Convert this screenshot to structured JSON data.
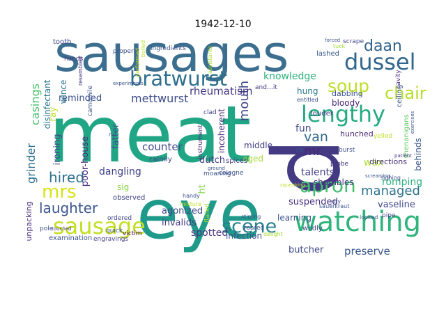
{
  "chart_data": {
    "type": "wordcloud",
    "title": "1942-12-10",
    "words": [
      {
        "text": "sausages",
        "color": "#3b6e8f"
      },
      {
        "text": "meat",
        "color": "#21a685"
      },
      {
        "text": "eye",
        "color": "#1f9a8a"
      },
      {
        "text": "d",
        "color": "#443a83"
      },
      {
        "text": "dussel",
        "color": "#31668e"
      },
      {
        "text": "bratwurst",
        "color": "#2e6f8e"
      },
      {
        "text": "lengthy",
        "color": "#25ab82"
      },
      {
        "text": "watching",
        "color": "#2fb47c"
      },
      {
        "text": "sausage",
        "color": "#c2df23"
      },
      {
        "text": "soup",
        "color": "#bddf26"
      },
      {
        "text": "mrs",
        "color": "#d8e219"
      },
      {
        "text": "apron",
        "color": "#44bf70"
      },
      {
        "text": "scene",
        "color": "#26828e"
      },
      {
        "text": "laughter",
        "color": "#3a548c"
      },
      {
        "text": "chair",
        "color": "#b5de2b"
      },
      {
        "text": "hired",
        "color": "#2d708e"
      },
      {
        "text": "managed",
        "color": "#2c728e"
      },
      {
        "text": "daan",
        "color": "#33638d"
      },
      {
        "text": "mouth",
        "color": "#3f4889"
      },
      {
        "text": "van",
        "color": "#31688e"
      },
      {
        "text": "mr.",
        "color": "#482878"
      },
      {
        "text": "knowledge",
        "color": "#2db27d"
      },
      {
        "text": "counter",
        "color": "#3e4c8a"
      },
      {
        "text": "mettwurst",
        "color": "#3d4d8a"
      },
      {
        "text": "casings",
        "color": "#4ac16d"
      },
      {
        "text": "fun",
        "color": "#404688"
      },
      {
        "text": "hung",
        "color": "#2a778e"
      },
      {
        "text": "wax",
        "color": "#b0dd2f"
      },
      {
        "text": "reminded",
        "color": "#3b528b"
      },
      {
        "text": "grinder",
        "color": "#2e6e8e"
      },
      {
        "text": "ironing",
        "color": "#3e4a89"
      },
      {
        "text": "rheumatism",
        "color": "#453781"
      },
      {
        "text": "talents",
        "color": "#424086"
      },
      {
        "text": "preserve",
        "color": "#38588c"
      },
      {
        "text": "romping",
        "color": "#2ab07f"
      },
      {
        "text": "dangling",
        "color": "#414487"
      },
      {
        "text": "invalids",
        "color": "#433e85"
      },
      {
        "text": "spotted",
        "color": "#46327e"
      },
      {
        "text": "butcher",
        "color": "#3f4788"
      },
      {
        "text": "infection",
        "color": "#3c4f8a"
      },
      {
        "text": "vaseline",
        "color": "#404588"
      },
      {
        "text": "poor-house",
        "color": "#472d7b"
      },
      {
        "text": "agonized",
        "color": "#3e4989"
      },
      {
        "text": "shambles",
        "color": "#453882"
      },
      {
        "text": "suspended",
        "color": "#472f7d"
      },
      {
        "text": "learning",
        "color": "#3b528b"
      },
      {
        "text": "dutch",
        "color": "#433d84"
      },
      {
        "text": "middle",
        "color": "#423f85"
      },
      {
        "text": "bloody",
        "color": "#482576"
      },
      {
        "text": "aged",
        "color": "#a5db36"
      },
      {
        "text": "ray",
        "color": "#c0df25"
      },
      {
        "text": "fatter",
        "color": "#3b528b"
      },
      {
        "text": "wince",
        "color": "#2c738e"
      },
      {
        "text": "disinfectant",
        "color": "#2a788e"
      },
      {
        "text": "unpacking",
        "color": "#46307e"
      },
      {
        "text": "behinds",
        "color": "#38598c"
      },
      {
        "text": "hunched",
        "color": "#482374"
      },
      {
        "text": "dabbing",
        "color": "#3b528b"
      },
      {
        "text": "directions",
        "color": "#472e7c"
      },
      {
        "text": "incoherent",
        "color": "#472d7b"
      },
      {
        "text": "sig",
        "color": "#8bd646"
      },
      {
        "text": "ht",
        "color": "#84d44b"
      },
      {
        "text": "calmly",
        "color": "#414487"
      },
      {
        "text": "observed",
        "color": "#414487"
      },
      {
        "text": "examination",
        "color": "#3b528b"
      },
      {
        "text": "engravings",
        "color": "#433e85"
      },
      {
        "text": "tooth",
        "color": "#3f4889"
      },
      {
        "text": "lashed",
        "color": "#39568c"
      },
      {
        "text": "scrape",
        "color": "#3e4989"
      },
      {
        "text": "ceiling",
        "color": "#3b528b"
      },
      {
        "text": "shenanigans",
        "color": "#5ec962"
      },
      {
        "text": "cavity",
        "color": "#472d7b"
      },
      {
        "text": "louder",
        "color": "#433d84"
      },
      {
        "text": "wildly",
        "color": "#3f4788"
      },
      {
        "text": "yelled",
        "color": "#bddf26"
      },
      {
        "text": "spices",
        "color": "#423f85"
      },
      {
        "text": "moaning",
        "color": "#3b528b"
      },
      {
        "text": "probe",
        "color": "#46337f"
      },
      {
        "text": "rib",
        "color": "#3b528b"
      },
      {
        "text": "hands",
        "color": "#433e85"
      },
      {
        "text": "pole",
        "color": "#3b528b"
      },
      {
        "text": "ordered",
        "color": "#414487"
      },
      {
        "text": "quick",
        "color": "#3b528b"
      },
      {
        "text": "victim",
        "color": "#440154"
      },
      {
        "text": "flailed",
        "color": "#a5db36"
      },
      {
        "text": "cologne",
        "color": "#3b528b"
      },
      {
        "text": "burst",
        "color": "#3b528b"
      },
      {
        "text": "sighing",
        "color": "#3b528b"
      },
      {
        "text": "roared",
        "color": "#3b528b"
      },
      {
        "text": "pipe",
        "color": "#414487"
      },
      {
        "text": "instrument",
        "color": "#482475"
      },
      {
        "text": "and…it",
        "color": "#443983"
      },
      {
        "text": "properly",
        "color": "#3b528b"
      },
      {
        "text": "clad",
        "color": "#414487"
      },
      {
        "text": "ingredients",
        "color": "#3b528b"
      },
      {
        "text": "assistants",
        "color": "#a2da37"
      },
      {
        "text": "resembled",
        "color": "#46327e"
      },
      {
        "text": "performed",
        "color": "#c8e020"
      },
      {
        "text": "boiled",
        "color": "#c0df25"
      },
      {
        "text": "stirring",
        "color": "#3b528b"
      },
      {
        "text": "mixture",
        "color": "#bddf26"
      },
      {
        "text": "touched",
        "color": "#46327e"
      },
      {
        "text": "delight",
        "color": "#a5db36"
      },
      {
        "text": "entitled",
        "color": "#3b528b"
      },
      {
        "text": "forced",
        "color": "#3b528b"
      },
      {
        "text": "looked",
        "color": "#3b528b"
      },
      {
        "text": "screaming",
        "color": "#3b528b"
      },
      {
        "text": "patient",
        "color": "#433d84"
      },
      {
        "text": "rid",
        "color": "#3b528b"
      },
      {
        "text": "ground",
        "color": "#3b528b"
      },
      {
        "text": "camomile",
        "color": "#3b528b"
      },
      {
        "text": "tuck",
        "color": "#a5db36"
      },
      {
        "text": "handy",
        "color": "#3b528b"
      },
      {
        "text": "dry",
        "color": "#3b528b"
      },
      {
        "text": "sauerkraut",
        "color": "#3b528b"
      },
      {
        "text": "exercises",
        "color": "#3b528b"
      },
      {
        "text": "squeaking",
        "color": "#bddf26"
      },
      {
        "text": "experiments",
        "color": "#3b528b"
      }
    ]
  }
}
